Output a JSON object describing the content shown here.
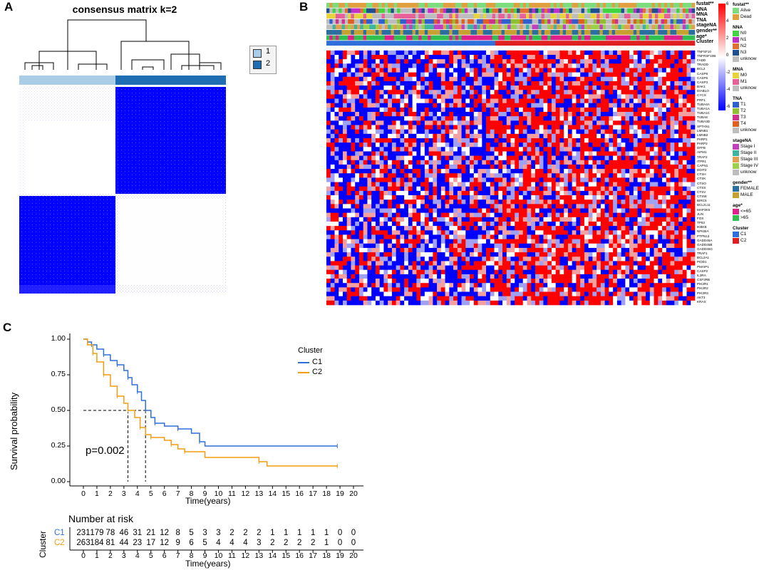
{
  "panels": {
    "a": "A",
    "b": "B",
    "c": "C"
  },
  "panel_a": {
    "title": "consensus matrix k=2",
    "legend": [
      {
        "label": "1",
        "color": "#a9cde6"
      },
      {
        "label": "2",
        "color": "#1f6db3"
      }
    ],
    "colors": {
      "block": "#0000ff",
      "background": "#ffffff"
    }
  },
  "panel_b": {
    "annotation_rows": [
      "fustat**",
      "NNA",
      "MNA",
      "TNA",
      "stageNA",
      "gender**",
      "age*",
      "Cluster"
    ],
    "genes": [
      "TNFSF10",
      "TNFRSF10B",
      "FADD",
      "TRADD",
      "BCL2",
      "CASP8",
      "CASP6",
      "CASP3",
      "BAK1",
      "DIABLO",
      "CYCS",
      "PRF1",
      "TUBA4A",
      "TUBA1A",
      "TUBA1C",
      "TUBA8",
      "TUBA3D",
      "SPTAN1",
      "LMNB1",
      "LMNB2",
      "PARP1",
      "PARP2",
      "DFFB",
      "AIFM1",
      "TRAF2",
      "ITPR1",
      "CAPN1",
      "DDIT3",
      "CTSH",
      "CTSK",
      "CTSO",
      "CTSS",
      "CTSV",
      "CTSW",
      "BIRC5",
      "BCL2L11",
      "MAP3K5",
      "JUN",
      "FOS",
      "TP53",
      "IKBKB",
      "NFKBIA",
      "PTPN13",
      "GADD45A",
      "GADD45B",
      "GADD45G",
      "TRAF1",
      "BCL2A1",
      "PIDD1",
      "PMAIP1",
      "CASP2",
      "IL3RA",
      "CSF2RB",
      "PIK3R1",
      "PIK3R2",
      "PIK3R3",
      "AKT3",
      "KRAS"
    ],
    "color_scale": {
      "ticks": [
        "6",
        "4",
        "2",
        "0",
        "-2",
        "-4",
        "-6"
      ],
      "high": "#ff0000",
      "mid": "#ffffff",
      "low": "#0000ff"
    },
    "legend_groups": [
      {
        "title": "fustat**",
        "items": [
          {
            "label": "Alive",
            "color": "#7ddc7d"
          },
          {
            "label": "Dead",
            "color": "#e0a040"
          }
        ]
      },
      {
        "title": "NNA",
        "items": [
          {
            "label": "N0",
            "color": "#41d641"
          },
          {
            "label": "N1",
            "color": "#c030c8"
          },
          {
            "label": "N2",
            "color": "#e07030"
          },
          {
            "label": "N3",
            "color": "#1f4f8f"
          },
          {
            "label": "unknow",
            "color": "#bdbdbd"
          }
        ]
      },
      {
        "title": "MNA",
        "items": [
          {
            "label": "M0",
            "color": "#e6d43c"
          },
          {
            "label": "M1",
            "color": "#e8609a"
          },
          {
            "label": "unknow",
            "color": "#bdbdbd"
          }
        ]
      },
      {
        "title": "TNA",
        "items": [
          {
            "label": "T1",
            "color": "#3060d0"
          },
          {
            "label": "T2",
            "color": "#90c030"
          },
          {
            "label": "T3",
            "color": "#d03090"
          },
          {
            "label": "T4",
            "color": "#e06020"
          },
          {
            "label": "unknow",
            "color": "#bdbdbd"
          }
        ]
      },
      {
        "title": "stageNA",
        "items": [
          {
            "label": "Stage I",
            "color": "#c040c0"
          },
          {
            "label": "Stage II",
            "color": "#3cb4a0"
          },
          {
            "label": "Stage III",
            "color": "#e0a050"
          },
          {
            "label": "Stage IV",
            "color": "#9ad04a"
          },
          {
            "label": "unknow",
            "color": "#bdbdbd"
          }
        ]
      },
      {
        "title": "gender**",
        "items": [
          {
            "label": "FEMALE",
            "color": "#2a6fa0"
          },
          {
            "label": "MALE",
            "color": "#c8a030"
          }
        ]
      },
      {
        "title": "age*",
        "items": [
          {
            "label": "<=65",
            "color": "#e0208a"
          },
          {
            "label": ">65",
            "color": "#30c050"
          }
        ]
      },
      {
        "title": "Cluster",
        "items": [
          {
            "label": "C1",
            "color": "#2f6fdc"
          },
          {
            "label": "C2",
            "color": "#e02020"
          }
        ]
      }
    ]
  },
  "chart_data": {
    "type": "line",
    "title": "",
    "xlabel": "Time(years)",
    "ylabel": "Survival probability",
    "xlim": [
      0,
      20
    ],
    "ylim": [
      0,
      1
    ],
    "x_ticks": [
      "0",
      "1",
      "2",
      "3",
      "4",
      "5",
      "6",
      "7",
      "8",
      "9",
      "10",
      "11",
      "12",
      "13",
      "14",
      "15",
      "16",
      "17",
      "18",
      "19",
      "20"
    ],
    "y_ticks": [
      "0.00",
      "0.25",
      "0.50",
      "0.75",
      "1.00"
    ],
    "legend_title": "Cluster",
    "annotation": "p=0.002",
    "median_lines": [
      3.3,
      4.6
    ],
    "series": [
      {
        "name": "C1",
        "color": "#2f6fdc",
        "points": [
          [
            0,
            1
          ],
          [
            0.3,
            0.98
          ],
          [
            0.6,
            0.96
          ],
          [
            1,
            0.93
          ],
          [
            1.5,
            0.89
          ],
          [
            2,
            0.85
          ],
          [
            2.5,
            0.82
          ],
          [
            3,
            0.78
          ],
          [
            3.3,
            0.73
          ],
          [
            3.6,
            0.68
          ],
          [
            4,
            0.63
          ],
          [
            4.3,
            0.57
          ],
          [
            4.6,
            0.5
          ],
          [
            5,
            0.45
          ],
          [
            5.3,
            0.41
          ],
          [
            6,
            0.39
          ],
          [
            7,
            0.37
          ],
          [
            8,
            0.34
          ],
          [
            8.6,
            0.28
          ],
          [
            9,
            0.25
          ],
          [
            18.8,
            0.25
          ]
        ]
      },
      {
        "name": "C2",
        "color": "#f39c12",
        "points": [
          [
            0,
            1
          ],
          [
            0.3,
            0.96
          ],
          [
            0.7,
            0.9
          ],
          [
            1,
            0.84
          ],
          [
            1.5,
            0.75
          ],
          [
            2,
            0.67
          ],
          [
            2.5,
            0.6
          ],
          [
            3,
            0.55
          ],
          [
            3.3,
            0.5
          ],
          [
            3.8,
            0.45
          ],
          [
            4.2,
            0.38
          ],
          [
            4.6,
            0.33
          ],
          [
            5,
            0.31
          ],
          [
            6,
            0.29
          ],
          [
            6.5,
            0.26
          ],
          [
            7,
            0.23
          ],
          [
            7.5,
            0.21
          ],
          [
            9,
            0.17
          ],
          [
            13,
            0.14
          ],
          [
            13.6,
            0.11
          ],
          [
            18.8,
            0.11
          ]
        ]
      }
    ]
  },
  "risk_table": {
    "title": "Number at risk",
    "ylabel": "Cluster",
    "xlabel": "Time(years)",
    "rows": [
      {
        "name": "C1",
        "color": "#2f6fdc",
        "values": [
          "231",
          "179",
          "78",
          "46",
          "31",
          "21",
          "12",
          "8",
          "5",
          "3",
          "3",
          "2",
          "2",
          "2",
          "1",
          "1",
          "1",
          "1",
          "1",
          "0",
          "0"
        ]
      },
      {
        "name": "C2",
        "color": "#f39c12",
        "values": [
          "263",
          "184",
          "81",
          "44",
          "23",
          "17",
          "12",
          "9",
          "6",
          "5",
          "4",
          "4",
          "4",
          "3",
          "2",
          "2",
          "2",
          "2",
          "1",
          "0",
          "0"
        ]
      }
    ]
  }
}
